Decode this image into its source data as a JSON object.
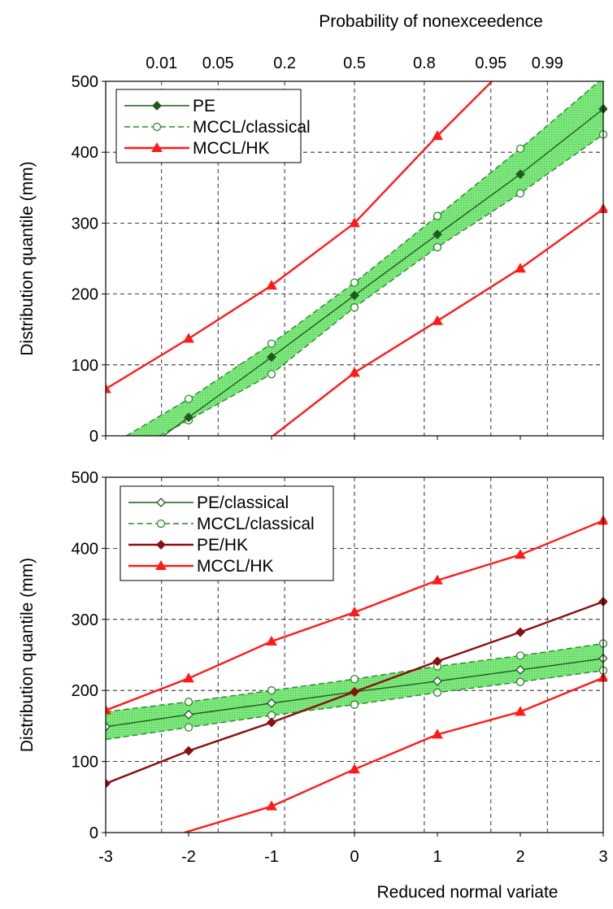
{
  "top_axis_title": "Probability of nonexceedence",
  "bottom_axis_title": "Reduced normal variate",
  "colors": {
    "green_dark": "#1e5c1e",
    "green_dashed": "#2a8a2a",
    "band_fill": "#5fdc5f",
    "red": "#ff1a1a",
    "dark_red": "#8b0f0f"
  },
  "chart_data": [
    {
      "type": "line",
      "panel": "top",
      "ylabel": "Distribution quantile (mm)",
      "xlabel": "Reduced normal variate",
      "top_xlabel": "Probability of nonexceedence",
      "xlim": [
        -3,
        3
      ],
      "ylim": [
        0,
        500
      ],
      "x_ticks": [
        "-3",
        "-2",
        "-1",
        "0",
        "1",
        "2",
        "3"
      ],
      "y_ticks": [
        "0",
        "100",
        "200",
        "300",
        "400",
        "500"
      ],
      "top_ticks": [
        {
          "label": "0.01",
          "z": -2.326
        },
        {
          "label": "0.05",
          "z": -1.645
        },
        {
          "label": "0.2",
          "z": -0.842
        },
        {
          "label": "0.5",
          "z": 0
        },
        {
          "label": "0.8",
          "z": 0.842
        },
        {
          "label": "0.95",
          "z": 1.645
        },
        {
          "label": "0.99",
          "z": 2.326
        }
      ],
      "grid": true,
      "legend_position": "top-left",
      "band": {
        "upper": "MCCL/classical upper",
        "lower": "MCCL/classical lower"
      },
      "series": [
        {
          "name": "PE",
          "style": "solid",
          "color": "#1e5c1e",
          "marker": "diamond-filled",
          "x": [
            -3,
            -2,
            -1,
            0,
            1,
            2,
            3
          ],
          "y": [
            -60,
            26,
            111,
            198,
            284,
            369,
            461
          ]
        },
        {
          "name": "MCCL/classical",
          "style": "dashed",
          "color": "#2a8a2a",
          "marker": "circle-open",
          "x": [
            -2.75,
            -2,
            -1,
            0,
            1,
            2,
            3
          ],
          "y": [
            0,
            52,
            130,
            216,
            310,
            405,
            425
          ],
          "upper_x": [
            -2.75,
            -2,
            -1,
            0,
            1,
            2,
            3
          ],
          "upper_y": [
            0,
            52,
            130,
            216,
            310,
            405,
            505
          ],
          "lower_x": [
            -2.35,
            -2,
            -1,
            0,
            1,
            2,
            3
          ],
          "lower_y": [
            0,
            22,
            87,
            181,
            266,
            342,
            425
          ]
        },
        {
          "name": "MCCL/HK",
          "style": "solid",
          "color": "#ff1a1a",
          "marker": "triangle-filled",
          "x": [
            -3,
            -2,
            -1,
            0,
            1,
            2,
            3
          ],
          "y": [
            66,
            137,
            212,
            300,
            423,
            540,
            620
          ],
          "lower_x": [
            -0.98,
            0,
            1,
            2,
            3
          ],
          "lower_y": [
            0,
            89,
            162,
            236,
            320
          ]
        }
      ]
    },
    {
      "type": "line",
      "panel": "bottom",
      "ylabel": "Distribution quantile (mm)",
      "xlabel": "Reduced normal variate",
      "xlim": [
        -3,
        3
      ],
      "ylim": [
        0,
        500
      ],
      "x_ticks": [
        "-3",
        "-2",
        "-1",
        "0",
        "1",
        "2",
        "3"
      ],
      "y_ticks": [
        "0",
        "100",
        "200",
        "300",
        "400",
        "500"
      ],
      "grid": true,
      "legend_position": "top-left",
      "series": [
        {
          "name": "PE/classical",
          "style": "solid",
          "color": "#1e5c1e",
          "marker": "diamond-open",
          "x": [
            -3,
            -2,
            -1,
            0,
            1,
            2,
            3
          ],
          "y": [
            149,
            166,
            182,
            198,
            213,
            229,
            245
          ]
        },
        {
          "name": "MCCL/classical",
          "style": "dashed",
          "color": "#2a8a2a",
          "marker": "circle-open",
          "upper_x": [
            -3,
            -2,
            -1,
            0,
            1,
            2,
            3
          ],
          "upper_y": [
            170,
            184,
            200,
            216,
            234,
            249,
            266
          ],
          "lower_x": [
            -3,
            -2,
            -1,
            0,
            1,
            2,
            3
          ],
          "lower_y": [
            131,
            148,
            165,
            180,
            197,
            212,
            228
          ]
        },
        {
          "name": "PE/HK",
          "style": "solid",
          "color": "#8b0f0f",
          "marker": "diamond-filled",
          "x": [
            -3,
            -2,
            -1,
            0,
            1,
            2,
            3
          ],
          "y": [
            69,
            115,
            155,
            198,
            241,
            282,
            325
          ]
        },
        {
          "name": "MCCL/HK",
          "style": "solid",
          "color": "#ff1a1a",
          "marker": "triangle-filled",
          "upper_x": [
            -3,
            -2,
            -1,
            0,
            1,
            2,
            3
          ],
          "upper_y": [
            172,
            217,
            269,
            310,
            355,
            391,
            439
          ],
          "lower_x": [
            -2.05,
            -1,
            0,
            1,
            2,
            3
          ],
          "lower_y": [
            0,
            37,
            89,
            138,
            170,
            218
          ]
        }
      ]
    }
  ]
}
